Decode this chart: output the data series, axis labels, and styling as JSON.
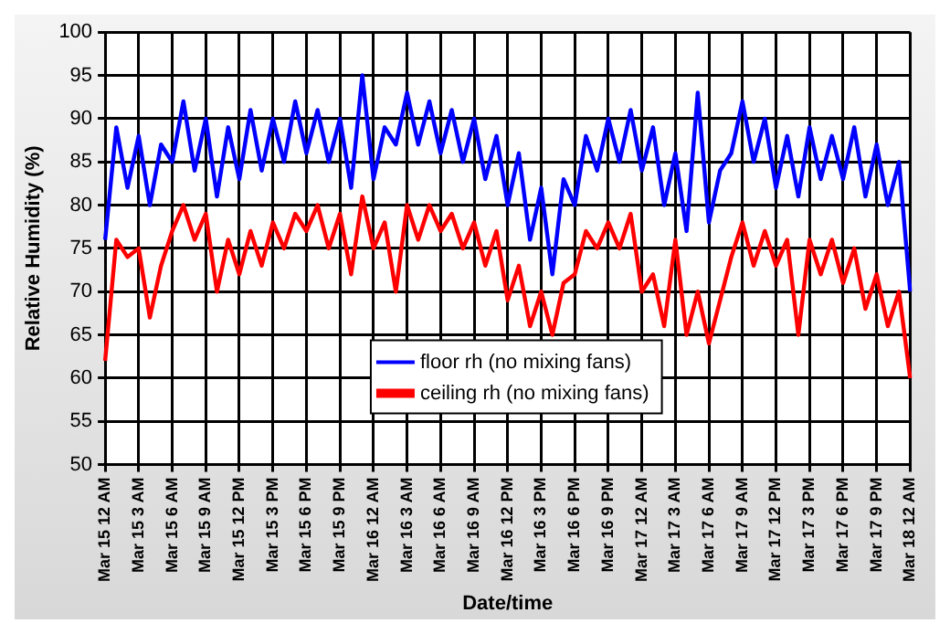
{
  "chart_data": {
    "type": "line",
    "xlabel": "Date/time",
    "ylabel": "Relative Humidity (%)",
    "categories": [
      "Mar 15 12 AM",
      null,
      null,
      "Mar 15 3 AM",
      null,
      null,
      "Mar 15 6 AM",
      null,
      null,
      "Mar 15 9 AM",
      null,
      null,
      "Mar 15 12 PM",
      null,
      null,
      "Mar 15 3 PM",
      null,
      null,
      "Mar 15 6 PM",
      null,
      null,
      "Mar 15 9 PM",
      null,
      null,
      "Mar 16 12 AM",
      null,
      null,
      "Mar 16 3 AM",
      null,
      null,
      "Mar 16 6 AM",
      null,
      null,
      "Mar 16 9 AM",
      null,
      null,
      "Mar 16 12 PM",
      null,
      null,
      "Mar 16 3 PM",
      null,
      null,
      "Mar 16 6 PM",
      null,
      null,
      "Mar 16 9 PM",
      null,
      null,
      "Mar 17 12 AM",
      null,
      null,
      "Mar 17 3 AM",
      null,
      null,
      "Mar 17 6 AM",
      null,
      null,
      "Mar 17 9 AM",
      null,
      null,
      "Mar 17 12 PM",
      null,
      null,
      "Mar 17 3 PM",
      null,
      null,
      "Mar 17 6 PM",
      null,
      null,
      "Mar 17 9 PM",
      null,
      null,
      "Mar 18 12 AM"
    ],
    "series": [
      {
        "name": "floor rh (no mixing fans)",
        "color": "#0000ff",
        "values": [
          76,
          89,
          82,
          88,
          80,
          87,
          85,
          92,
          84,
          90,
          81,
          89,
          83,
          91,
          84,
          90,
          85,
          92,
          86,
          91,
          85,
          90,
          82,
          95,
          83,
          89,
          87,
          93,
          87,
          92,
          86,
          91,
          85,
          90,
          83,
          88,
          80,
          86,
          76,
          82,
          72,
          83,
          80,
          88,
          84,
          90,
          85,
          91,
          84,
          89,
          80,
          86,
          77,
          93,
          78,
          84,
          86,
          92,
          85,
          90,
          82,
          88,
          81,
          89,
          83,
          88,
          83,
          89,
          81,
          87,
          80,
          85,
          70
        ]
      },
      {
        "name": "ceiling rh (no mixing fans)",
        "color": "#ff0000",
        "values": [
          62,
          76,
          74,
          75,
          67,
          73,
          77,
          80,
          76,
          79,
          70,
          76,
          72,
          77,
          73,
          78,
          75,
          79,
          77,
          80,
          75,
          79,
          72,
          81,
          75,
          78,
          70,
          80,
          76,
          80,
          77,
          79,
          75,
          78,
          73,
          77,
          69,
          73,
          66,
          70,
          65,
          71,
          72,
          77,
          75,
          78,
          75,
          79,
          70,
          72,
          66,
          76,
          65,
          70,
          64,
          69,
          74,
          78,
          73,
          77,
          73,
          76,
          65,
          76,
          72,
          76,
          71,
          75,
          68,
          72,
          66,
          70,
          60
        ]
      }
    ],
    "ylim": [
      50,
      100
    ],
    "yticks": [
      50,
      55,
      60,
      65,
      70,
      75,
      80,
      85,
      90,
      95,
      100
    ],
    "grid": true,
    "legend": "bottom",
    "marker": "none",
    "line_style": "solid"
  }
}
